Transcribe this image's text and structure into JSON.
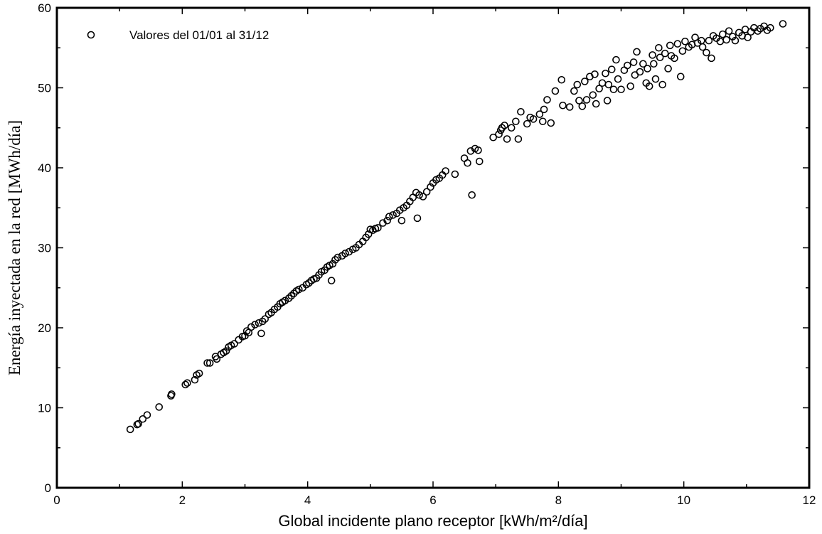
{
  "chart_data": {
    "type": "scatter",
    "xlabel": "Global incidente plano receptor [kWh/m²/día]",
    "ylabel": "Energía inyectada en la red [MWh/día]",
    "xlim": [
      0,
      12
    ],
    "ylim": [
      0,
      60
    ],
    "x_ticks": [
      0,
      2,
      4,
      6,
      8,
      10,
      12
    ],
    "y_ticks": [
      0,
      10,
      20,
      30,
      40,
      50,
      60
    ],
    "grid": false,
    "legend_position": "top-left",
    "marker": "open-circle",
    "series": [
      {
        "name": "Valores del 01/01 al 31/12",
        "color": "#000000",
        "points": [
          [
            1.17,
            7.3
          ],
          [
            1.28,
            7.9
          ],
          [
            1.3,
            8.0
          ],
          [
            1.37,
            8.6
          ],
          [
            1.44,
            9.1
          ],
          [
            1.63,
            10.1
          ],
          [
            1.82,
            11.5
          ],
          [
            1.83,
            11.7
          ],
          [
            2.05,
            12.9
          ],
          [
            2.08,
            13.1
          ],
          [
            2.2,
            13.5
          ],
          [
            2.23,
            14.1
          ],
          [
            2.27,
            14.3
          ],
          [
            2.4,
            15.6
          ],
          [
            2.44,
            15.6
          ],
          [
            2.53,
            16.4
          ],
          [
            2.55,
            16.1
          ],
          [
            2.62,
            16.7
          ],
          [
            2.66,
            16.9
          ],
          [
            2.7,
            17.1
          ],
          [
            2.74,
            17.6
          ],
          [
            2.78,
            17.8
          ],
          [
            2.83,
            18.0
          ],
          [
            2.9,
            18.5
          ],
          [
            2.96,
            18.9
          ],
          [
            3.0,
            19.0
          ],
          [
            3.03,
            19.6
          ],
          [
            3.06,
            19.4
          ],
          [
            3.1,
            20.1
          ],
          [
            3.16,
            20.4
          ],
          [
            3.22,
            20.6
          ],
          [
            3.26,
            19.3
          ],
          [
            3.28,
            20.8
          ],
          [
            3.32,
            21.1
          ],
          [
            3.38,
            21.7
          ],
          [
            3.42,
            21.9
          ],
          [
            3.47,
            22.3
          ],
          [
            3.52,
            22.6
          ],
          [
            3.56,
            23.0
          ],
          [
            3.6,
            23.2
          ],
          [
            3.64,
            23.4
          ],
          [
            3.7,
            23.7
          ],
          [
            3.74,
            24.0
          ],
          [
            3.78,
            24.3
          ],
          [
            3.82,
            24.6
          ],
          [
            3.86,
            24.8
          ],
          [
            3.92,
            25.0
          ],
          [
            3.98,
            25.4
          ],
          [
            4.02,
            25.6
          ],
          [
            4.06,
            25.9
          ],
          [
            4.1,
            26.1
          ],
          [
            4.14,
            26.2
          ],
          [
            4.18,
            26.6
          ],
          [
            4.22,
            27.0
          ],
          [
            4.27,
            27.2
          ],
          [
            4.31,
            27.6
          ],
          [
            4.35,
            27.8
          ],
          [
            4.38,
            25.9
          ],
          [
            4.4,
            28.0
          ],
          [
            4.44,
            28.5
          ],
          [
            4.48,
            28.8
          ],
          [
            4.55,
            29.0
          ],
          [
            4.6,
            29.3
          ],
          [
            4.66,
            29.5
          ],
          [
            4.72,
            29.8
          ],
          [
            4.77,
            30.0
          ],
          [
            4.82,
            30.4
          ],
          [
            4.88,
            30.8
          ],
          [
            4.93,
            31.3
          ],
          [
            4.97,
            31.7
          ],
          [
            5.0,
            32.3
          ],
          [
            5.04,
            32.2
          ],
          [
            5.08,
            32.4
          ],
          [
            5.12,
            32.5
          ],
          [
            5.2,
            33.1
          ],
          [
            5.27,
            33.4
          ],
          [
            5.3,
            33.9
          ],
          [
            5.36,
            34.1
          ],
          [
            5.42,
            34.3
          ],
          [
            5.47,
            34.7
          ],
          [
            5.5,
            33.4
          ],
          [
            5.53,
            35.0
          ],
          [
            5.58,
            35.3
          ],
          [
            5.63,
            35.8
          ],
          [
            5.68,
            36.3
          ],
          [
            5.73,
            36.9
          ],
          [
            5.75,
            33.7
          ],
          [
            5.78,
            36.6
          ],
          [
            5.84,
            36.4
          ],
          [
            5.9,
            37.0
          ],
          [
            5.96,
            37.6
          ],
          [
            6.0,
            38.1
          ],
          [
            6.05,
            38.5
          ],
          [
            6.1,
            38.7
          ],
          [
            6.15,
            39.1
          ],
          [
            6.2,
            39.6
          ],
          [
            6.35,
            39.2
          ],
          [
            6.5,
            41.2
          ],
          [
            6.55,
            40.6
          ],
          [
            6.6,
            42.1
          ],
          [
            6.62,
            36.6
          ],
          [
            6.67,
            42.4
          ],
          [
            6.72,
            42.2
          ],
          [
            6.74,
            40.8
          ],
          [
            6.96,
            43.8
          ],
          [
            7.05,
            44.2
          ],
          [
            7.08,
            44.7
          ],
          [
            7.1,
            45.0
          ],
          [
            7.14,
            45.3
          ],
          [
            7.18,
            43.6
          ],
          [
            7.25,
            45.0
          ],
          [
            7.32,
            45.8
          ],
          [
            7.36,
            43.6
          ],
          [
            7.4,
            47.0
          ],
          [
            7.5,
            45.5
          ],
          [
            7.55,
            46.3
          ],
          [
            7.6,
            46.1
          ],
          [
            7.7,
            46.7
          ],
          [
            7.75,
            45.8
          ],
          [
            7.77,
            47.3
          ],
          [
            7.82,
            48.5
          ],
          [
            7.88,
            45.6
          ],
          [
            7.95,
            49.6
          ],
          [
            8.05,
            51.0
          ],
          [
            8.07,
            47.8
          ],
          [
            8.18,
            47.6
          ],
          [
            8.25,
            49.6
          ],
          [
            8.3,
            50.4
          ],
          [
            8.33,
            48.4
          ],
          [
            8.38,
            47.7
          ],
          [
            8.42,
            50.8
          ],
          [
            8.45,
            48.5
          ],
          [
            8.5,
            51.4
          ],
          [
            8.55,
            49.1
          ],
          [
            8.58,
            51.7
          ],
          [
            8.6,
            48.0
          ],
          [
            8.65,
            49.9
          ],
          [
            8.7,
            50.6
          ],
          [
            8.75,
            51.8
          ],
          [
            8.78,
            48.4
          ],
          [
            8.8,
            50.4
          ],
          [
            8.85,
            52.3
          ],
          [
            8.88,
            49.8
          ],
          [
            8.92,
            53.5
          ],
          [
            8.95,
            51.1
          ],
          [
            9.0,
            49.8
          ],
          [
            9.05,
            52.2
          ],
          [
            9.1,
            52.8
          ],
          [
            9.15,
            50.2
          ],
          [
            9.2,
            53.2
          ],
          [
            9.22,
            51.6
          ],
          [
            9.25,
            54.5
          ],
          [
            9.3,
            52.0
          ],
          [
            9.35,
            53.0
          ],
          [
            9.4,
            50.6
          ],
          [
            9.42,
            52.4
          ],
          [
            9.45,
            50.2
          ],
          [
            9.5,
            54.1
          ],
          [
            9.52,
            53.0
          ],
          [
            9.55,
            51.1
          ],
          [
            9.6,
            55.0
          ],
          [
            9.62,
            53.8
          ],
          [
            9.66,
            50.4
          ],
          [
            9.7,
            54.3
          ],
          [
            9.75,
            52.4
          ],
          [
            9.78,
            55.3
          ],
          [
            9.8,
            54.0
          ],
          [
            9.85,
            53.7
          ],
          [
            9.9,
            55.5
          ],
          [
            9.95,
            51.4
          ],
          [
            9.98,
            54.6
          ],
          [
            10.02,
            55.8
          ],
          [
            10.08,
            55.1
          ],
          [
            10.13,
            55.4
          ],
          [
            10.18,
            56.3
          ],
          [
            10.22,
            55.6
          ],
          [
            10.28,
            55.9
          ],
          [
            10.3,
            55.1
          ],
          [
            10.36,
            54.4
          ],
          [
            10.4,
            55.9
          ],
          [
            10.44,
            53.7
          ],
          [
            10.47,
            56.5
          ],
          [
            10.52,
            56.2
          ],
          [
            10.58,
            55.8
          ],
          [
            10.62,
            56.7
          ],
          [
            10.68,
            56.0
          ],
          [
            10.72,
            57.1
          ],
          [
            10.78,
            56.4
          ],
          [
            10.82,
            55.9
          ],
          [
            10.88,
            56.9
          ],
          [
            10.93,
            56.5
          ],
          [
            10.98,
            57.3
          ],
          [
            11.02,
            56.3
          ],
          [
            11.07,
            57.0
          ],
          [
            11.12,
            57.5
          ],
          [
            11.18,
            57.1
          ],
          [
            11.22,
            57.4
          ],
          [
            11.28,
            57.7
          ],
          [
            11.33,
            57.2
          ],
          [
            11.38,
            57.5
          ],
          [
            11.58,
            58.0
          ]
        ]
      }
    ]
  }
}
